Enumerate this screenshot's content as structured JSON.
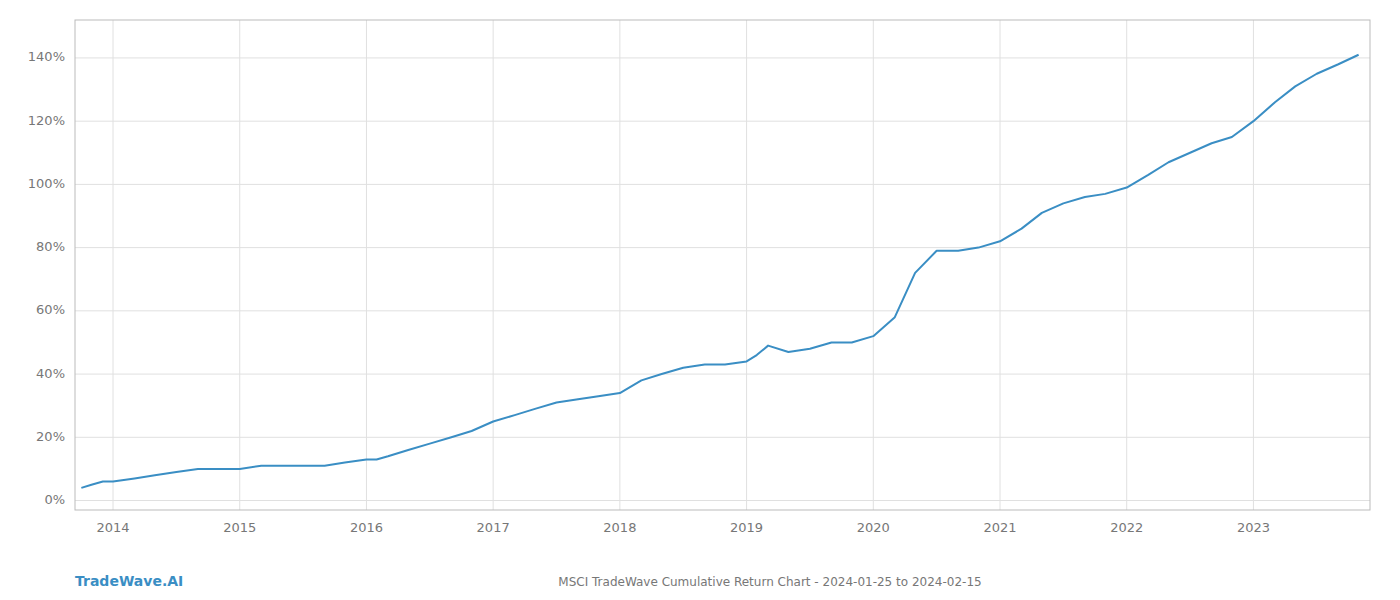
{
  "chart_data": {
    "type": "line",
    "title": "MSCI TradeWave Cumulative Return Chart - 2024-01-25 to 2024-02-15",
    "annotations": [
      "TradeWave.AI"
    ],
    "color": "#3a8ec4",
    "grid": true,
    "x": [
      2013.75,
      2013.83,
      2013.92,
      2014.0,
      2014.17,
      2014.33,
      2014.5,
      2014.67,
      2014.83,
      2015.0,
      2015.17,
      2015.33,
      2015.5,
      2015.67,
      2015.83,
      2016.0,
      2016.08,
      2016.17,
      2016.33,
      2016.5,
      2016.67,
      2016.83,
      2017.0,
      2017.17,
      2017.33,
      2017.5,
      2017.67,
      2017.83,
      2018.0,
      2018.17,
      2018.33,
      2018.5,
      2018.67,
      2018.83,
      2019.0,
      2019.08,
      2019.17,
      2019.33,
      2019.5,
      2019.67,
      2019.83,
      2020.0,
      2020.17,
      2020.33,
      2020.5,
      2020.67,
      2020.83,
      2021.0,
      2021.17,
      2021.33,
      2021.5,
      2021.67,
      2021.83,
      2022.0,
      2022.17,
      2022.33,
      2022.5,
      2022.67,
      2022.83,
      2023.0,
      2023.17,
      2023.33,
      2023.5,
      2023.67,
      2023.83
    ],
    "values": [
      4,
      5,
      6,
      6,
      7,
      8,
      9,
      10,
      10,
      10,
      11,
      11,
      11,
      11,
      12,
      13,
      13,
      14,
      16,
      18,
      20,
      22,
      25,
      27,
      29,
      31,
      32,
      33,
      34,
      38,
      40,
      42,
      43,
      43,
      44,
      46,
      49,
      47,
      48,
      50,
      50,
      52,
      58,
      72,
      79,
      79,
      80,
      82,
      86,
      91,
      94,
      96,
      97,
      99,
      103,
      107,
      110,
      113,
      115,
      120,
      126,
      131,
      135,
      138,
      141
    ],
    "xlim": [
      2013.7,
      2023.92
    ],
    "xticks": [
      2014,
      2015,
      2016,
      2017,
      2018,
      2019,
      2020,
      2021,
      2022,
      2023
    ],
    "ylim": [
      -3,
      152
    ],
    "yticks": [
      {
        "value": 0,
        "label": "0%"
      },
      {
        "value": 20,
        "label": "20%"
      },
      {
        "value": 40,
        "label": "40%"
      },
      {
        "value": 60,
        "label": "60%"
      },
      {
        "value": 80,
        "label": "80%"
      },
      {
        "value": 100,
        "label": "100%"
      },
      {
        "value": 120,
        "label": "120%"
      },
      {
        "value": 140,
        "label": "140%"
      }
    ]
  }
}
